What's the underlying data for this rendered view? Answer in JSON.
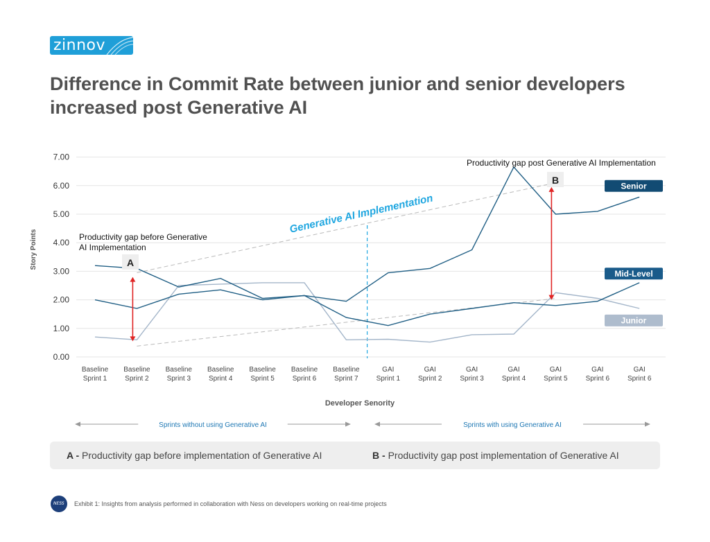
{
  "brand": {
    "logo_text": "zinnov"
  },
  "title": "Difference in Commit Rate between junior and senior developers increased post Generative AI",
  "colors": {
    "senior": "#1f5e84",
    "mid": "#1f5e84",
    "junior": "#a3b5c9",
    "senior_label_bg": "#124b73",
    "mid_label_bg": "#1a5b8a",
    "junior_label_bg": "#aebccd",
    "gap_arrow": "#e02424",
    "implementation": "#1ea6e0",
    "accent_blue": "#1f78b4"
  },
  "chart_data": {
    "type": "line",
    "ylabel": "Story Points",
    "xlabel": "Developer Senority",
    "ylim": [
      0,
      7
    ],
    "yticks": [
      "0.00",
      "1.00",
      "2.00",
      "3.00",
      "4.00",
      "5.00",
      "6.00",
      "7.00"
    ],
    "grid": true,
    "categories": [
      [
        "Baseline",
        "Sprint 1"
      ],
      [
        "Baseline",
        "Sprint 2"
      ],
      [
        "Baseline",
        "Sprint 3"
      ],
      [
        "Baseline",
        "Sprint 4"
      ],
      [
        "Baseline",
        "Sprint 5"
      ],
      [
        "Baseline",
        "Sprint 6"
      ],
      [
        "Baseline",
        "Sprint 7"
      ],
      [
        "GAI",
        "Sprint 1"
      ],
      [
        "GAI",
        "Sprint 2"
      ],
      [
        "GAI",
        "Sprint 3"
      ],
      [
        "GAI",
        "Sprint 4"
      ],
      [
        "GAI",
        "Sprint 5"
      ],
      [
        "GAI",
        "Sprint 6"
      ],
      [
        "GAI",
        "Sprint 6"
      ]
    ],
    "series": [
      {
        "name": "Senior",
        "values": [
          3.2,
          3.1,
          2.45,
          2.75,
          2.05,
          2.15,
          1.95,
          2.95,
          3.1,
          3.75,
          6.65,
          5.0,
          5.1,
          5.6
        ]
      },
      {
        "name": "Mid-Level",
        "values": [
          2.0,
          1.7,
          2.2,
          2.35,
          2.0,
          2.15,
          1.38,
          1.1,
          1.5,
          1.7,
          1.9,
          1.8,
          1.95,
          2.6
        ]
      },
      {
        "name": "Junior",
        "values": [
          0.7,
          0.6,
          2.5,
          2.55,
          2.6,
          2.6,
          0.6,
          0.62,
          0.52,
          0.78,
          0.8,
          2.25,
          2.05,
          1.7
        ]
      }
    ],
    "annotations": {
      "implementation_label": "Generative AI Implementation",
      "gap_before_label": [
        "Productivity gap before Generative",
        "AI Implementation"
      ],
      "gap_after_label": "Productivity gap post Generative AI Implementation",
      "gap_before_marker": "A",
      "gap_after_marker": "B",
      "gap_before_range": [
        0.55,
        2.8
      ],
      "gap_after_range": [
        2.0,
        5.95
      ],
      "trend_upper": [
        [
          1,
          2.95
        ],
        [
          11,
          6.1
        ]
      ],
      "trend_lower": [
        [
          1,
          0.38
        ],
        [
          11,
          2.05
        ]
      ]
    },
    "periods": {
      "without": "Sprints without using Generative AI",
      "with": "Sprints with using Generative  AI"
    }
  },
  "legend": {
    "a_marker": "A -",
    "a_text": "Productivity gap before implementation of Generative AI",
    "b_marker": "B -",
    "b_text": "Productivity gap post implementation of Generative AI"
  },
  "footer": {
    "logo_text": "NESS",
    "text": "Exhibit 1: Insights from analysis performed in collaboration with Ness on developers working on real-time projects"
  }
}
